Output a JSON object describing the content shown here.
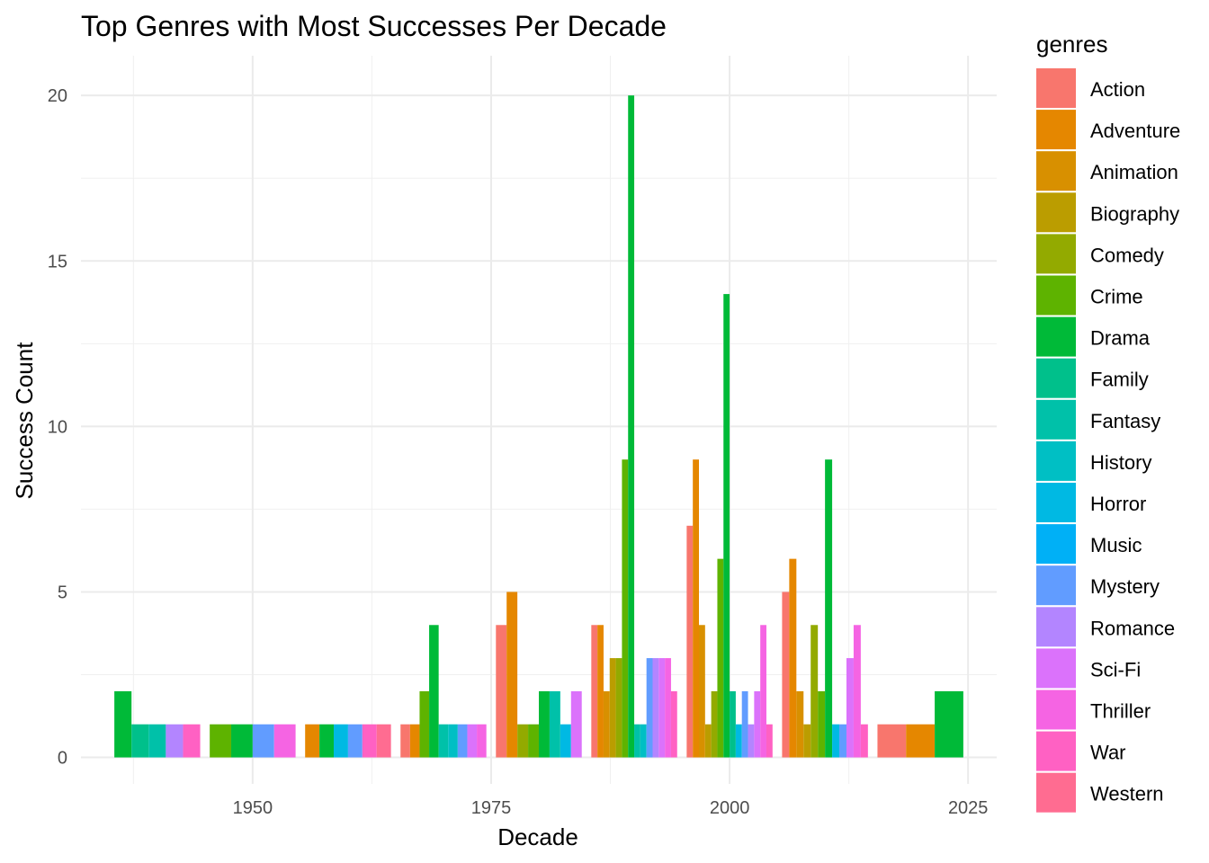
{
  "chart_data": {
    "type": "bar",
    "title": "Top Genres with Most Successes Per Decade",
    "xlabel": "Decade",
    "ylabel": "Success Count",
    "x_ticks": [
      1950,
      1975,
      2000,
      2025
    ],
    "y_ticks": [
      0,
      5,
      10,
      15,
      20
    ],
    "xlim": [
      1932,
      2028
    ],
    "ylim": [
      -0.8,
      21.2
    ],
    "grid": true,
    "legend_title": "genres",
    "legend_position": "right",
    "genres": [
      {
        "name": "Action",
        "color": "#F8766D"
      },
      {
        "name": "Adventure",
        "color": "#E58700"
      },
      {
        "name": "Animation",
        "color": "#D89000"
      },
      {
        "name": "Biography",
        "color": "#BB9D00"
      },
      {
        "name": "Comedy",
        "color": "#93AA00"
      },
      {
        "name": "Crime",
        "color": "#5EB300"
      },
      {
        "name": "Drama",
        "color": "#00BA38"
      },
      {
        "name": "Family",
        "color": "#00C08B"
      },
      {
        "name": "Fantasy",
        "color": "#00C1A9"
      },
      {
        "name": "History",
        "color": "#00BFC4"
      },
      {
        "name": "Horror",
        "color": "#00B9E3"
      },
      {
        "name": "Music",
        "color": "#00B0F6"
      },
      {
        "name": "Mystery",
        "color": "#619CFF"
      },
      {
        "name": "Romance",
        "color": "#B385FF"
      },
      {
        "name": "Sci-Fi",
        "color": "#DB72FB"
      },
      {
        "name": "Thriller",
        "color": "#F564E3"
      },
      {
        "name": "War",
        "color": "#FF61C3"
      },
      {
        "name": "Western",
        "color": "#FF6C91"
      }
    ],
    "decades": [
      {
        "decade": 1940,
        "bars": [
          {
            "genre": "Drama",
            "value": 2
          },
          {
            "genre": "Family",
            "value": 1
          },
          {
            "genre": "Fantasy",
            "value": 1
          },
          {
            "genre": "Romance",
            "value": 1
          },
          {
            "genre": "War",
            "value": 1
          }
        ]
      },
      {
        "decade": 1950,
        "bars": [
          {
            "genre": "Crime",
            "value": 1
          },
          {
            "genre": "Drama",
            "value": 1
          },
          {
            "genre": "Mystery",
            "value": 1
          },
          {
            "genre": "Thriller",
            "value": 1
          }
        ]
      },
      {
        "decade": 1960,
        "bars": [
          {
            "genre": "Adventure",
            "value": 1
          },
          {
            "genre": "Drama",
            "value": 1
          },
          {
            "genre": "Horror",
            "value": 1
          },
          {
            "genre": "Mystery",
            "value": 1
          },
          {
            "genre": "War",
            "value": 1
          },
          {
            "genre": "Western",
            "value": 1
          }
        ]
      },
      {
        "decade": 1970,
        "bars": [
          {
            "genre": "Action",
            "value": 1
          },
          {
            "genre": "Adventure",
            "value": 1
          },
          {
            "genre": "Crime",
            "value": 2
          },
          {
            "genre": "Drama",
            "value": 4
          },
          {
            "genre": "Fantasy",
            "value": 1
          },
          {
            "genre": "History",
            "value": 1
          },
          {
            "genre": "Mystery",
            "value": 1
          },
          {
            "genre": "Sci-Fi",
            "value": 1
          },
          {
            "genre": "Thriller",
            "value": 1
          }
        ]
      },
      {
        "decade": 1980,
        "bars": [
          {
            "genre": "Action",
            "value": 4
          },
          {
            "genre": "Adventure",
            "value": 5
          },
          {
            "genre": "Comedy",
            "value": 1
          },
          {
            "genre": "Crime",
            "value": 1
          },
          {
            "genre": "Drama",
            "value": 2
          },
          {
            "genre": "Fantasy",
            "value": 2
          },
          {
            "genre": "Horror",
            "value": 1
          },
          {
            "genre": "Sci-Fi",
            "value": 2
          }
        ]
      },
      {
        "decade": 1990,
        "bars": [
          {
            "genre": "Action",
            "value": 4
          },
          {
            "genre": "Adventure",
            "value": 4
          },
          {
            "genre": "Animation",
            "value": 2
          },
          {
            "genre": "Biography",
            "value": 3
          },
          {
            "genre": "Comedy",
            "value": 3
          },
          {
            "genre": "Crime",
            "value": 9
          },
          {
            "genre": "Drama",
            "value": 20
          },
          {
            "genre": "Fantasy",
            "value": 1
          },
          {
            "genre": "History",
            "value": 1
          },
          {
            "genre": "Mystery",
            "value": 3
          },
          {
            "genre": "Romance",
            "value": 3
          },
          {
            "genre": "Sci-Fi",
            "value": 3
          },
          {
            "genre": "Thriller",
            "value": 3
          },
          {
            "genre": "War",
            "value": 2
          }
        ]
      },
      {
        "decade": 2000,
        "bars": [
          {
            "genre": "Action",
            "value": 7
          },
          {
            "genre": "Adventure",
            "value": 9
          },
          {
            "genre": "Animation",
            "value": 4
          },
          {
            "genre": "Biography",
            "value": 1
          },
          {
            "genre": "Comedy",
            "value": 2
          },
          {
            "genre": "Crime",
            "value": 6
          },
          {
            "genre": "Drama",
            "value": 14
          },
          {
            "genre": "Family",
            "value": 2
          },
          {
            "genre": "Horror",
            "value": 1
          },
          {
            "genre": "Mystery",
            "value": 2
          },
          {
            "genre": "Romance",
            "value": 1
          },
          {
            "genre": "Sci-Fi",
            "value": 2
          },
          {
            "genre": "Thriller",
            "value": 4
          },
          {
            "genre": "War",
            "value": 1
          }
        ]
      },
      {
        "decade": 2010,
        "bars": [
          {
            "genre": "Action",
            "value": 5
          },
          {
            "genre": "Adventure",
            "value": 6
          },
          {
            "genre": "Animation",
            "value": 2
          },
          {
            "genre": "Biography",
            "value": 1
          },
          {
            "genre": "Comedy",
            "value": 4
          },
          {
            "genre": "Crime",
            "value": 2
          },
          {
            "genre": "Drama",
            "value": 9
          },
          {
            "genre": "Horror",
            "value": 1
          },
          {
            "genre": "Mystery",
            "value": 1
          },
          {
            "genre": "Sci-Fi",
            "value": 3
          },
          {
            "genre": "Thriller",
            "value": 4
          },
          {
            "genre": "War",
            "value": 1
          }
        ]
      },
      {
        "decade": 2020,
        "bars": [
          {
            "genre": "Action",
            "value": 1
          },
          {
            "genre": "Adventure",
            "value": 1
          },
          {
            "genre": "Drama",
            "value": 2
          }
        ]
      }
    ]
  }
}
